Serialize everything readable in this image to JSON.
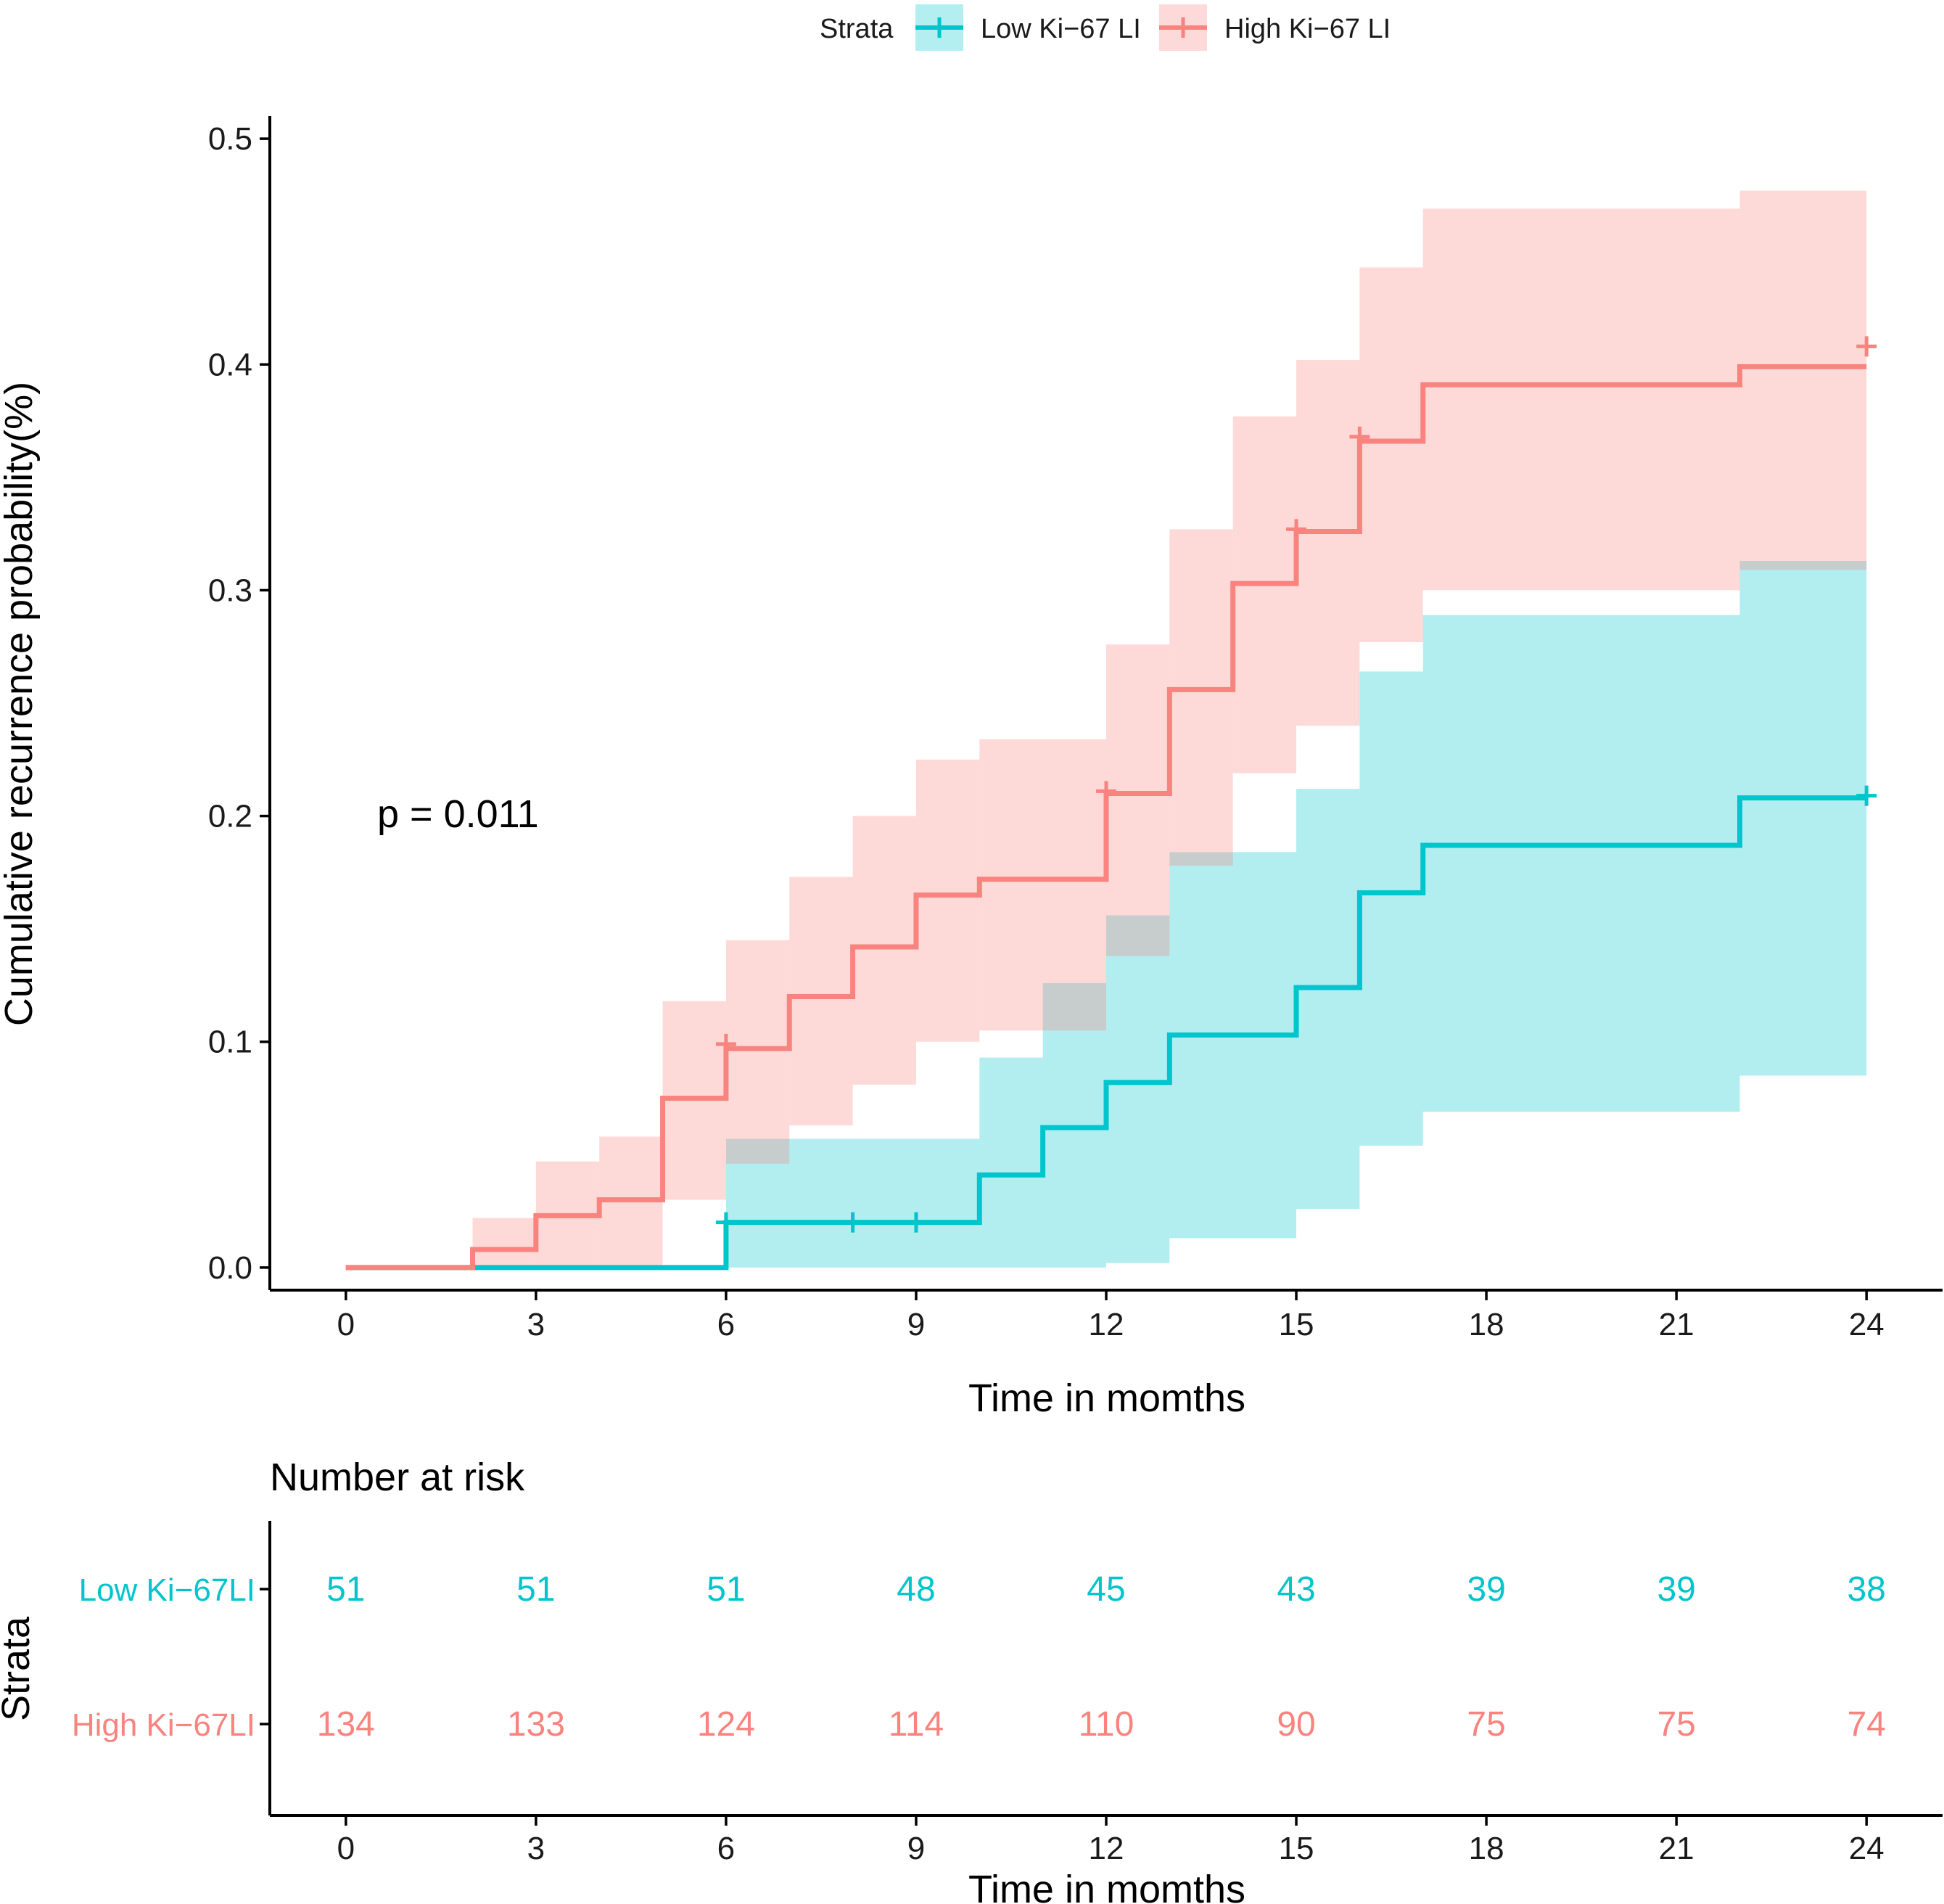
{
  "legend": {
    "title": "Strata",
    "items": [
      {
        "label": "Low Ki−67 LI",
        "color": "#00C5CC",
        "fill": "#B3EEF0"
      },
      {
        "label": "High Ki−67 LI",
        "color": "#F8837F",
        "fill": "#FDD9D9"
      }
    ]
  },
  "annotation": {
    "pvalue": "p = 0.011"
  },
  "risk_table": {
    "title": "Number at risk",
    "ylabel": "Strata",
    "xlabel": "Time in momths",
    "times": [
      0,
      3,
      6,
      9,
      12,
      15,
      18,
      21,
      24
    ],
    "rows": [
      {
        "label": "Low Ki−67LI",
        "color": "#00C5CC",
        "values": [
          51,
          51,
          51,
          48,
          45,
          43,
          39,
          39,
          38
        ]
      },
      {
        "label": "High Ki−67LI",
        "color": "#F8837F",
        "values": [
          134,
          133,
          124,
          114,
          110,
          90,
          75,
          75,
          74
        ]
      }
    ]
  },
  "chart_data": {
    "type": "line",
    "subtype": "step",
    "title": "",
    "xlabel": "Time in momths",
    "ylabel": "Cumulative recurrence probability(%)",
    "xlim": [
      -1.2,
      25.2
    ],
    "ylim": [
      -0.01,
      0.51
    ],
    "xticks": [
      0,
      3,
      6,
      9,
      12,
      15,
      18,
      21,
      24
    ],
    "yticks": [
      0.0,
      0.1,
      0.2,
      0.3,
      0.4,
      0.5
    ],
    "ytick_labels": [
      "0.0",
      "0.1",
      "0.2",
      "0.3",
      "0.4",
      "0.5"
    ],
    "series": [
      {
        "name": "Low Ki−67 LI",
        "color": "#00C5CC",
        "fill": "#B3EEF0",
        "step_x": [
          0,
          6,
          10,
          11,
          12,
          13,
          15,
          16,
          17,
          22,
          24
        ],
        "step_y": [
          0.0,
          0.02,
          0.041,
          0.062,
          0.082,
          0.103,
          0.124,
          0.166,
          0.187,
          0.208,
          0.208
        ],
        "ci_lower": [
          0.0,
          0.0,
          0.0,
          0.0,
          0.002,
          0.013,
          0.026,
          0.054,
          0.069,
          0.085,
          0.085
        ],
        "ci_upper": [
          0.0,
          0.057,
          0.093,
          0.126,
          0.156,
          0.184,
          0.212,
          0.264,
          0.289,
          0.313,
          0.313
        ],
        "censor_x": [
          6,
          8,
          9,
          24
        ],
        "censor_y": [
          0.02,
          0.02,
          0.02,
          0.209
        ]
      },
      {
        "name": "High Ki−67 LI",
        "color": "#F8837F",
        "fill": "#FDD9D9",
        "step_x": [
          0,
          2,
          3,
          4,
          5,
          6,
          7,
          8,
          9,
          10,
          12,
          13,
          14,
          15,
          16,
          17,
          22,
          24
        ],
        "step_y": [
          0.0,
          0.008,
          0.023,
          0.03,
          0.075,
          0.097,
          0.12,
          0.142,
          0.165,
          0.172,
          0.21,
          0.256,
          0.303,
          0.326,
          0.366,
          0.391,
          0.399,
          0.399
        ],
        "ci_lower": [
          0.0,
          0.0,
          0.0,
          0.0,
          0.03,
          0.046,
          0.063,
          0.081,
          0.1,
          0.105,
          0.138,
          0.178,
          0.219,
          0.24,
          0.277,
          0.3,
          0.309,
          0.309
        ],
        "ci_upper": [
          0.0,
          0.022,
          0.047,
          0.058,
          0.118,
          0.145,
          0.173,
          0.2,
          0.225,
          0.234,
          0.276,
          0.327,
          0.377,
          0.402,
          0.443,
          0.469,
          0.477,
          0.477
        ],
        "censor_x": [
          6,
          12,
          15,
          16,
          24
        ],
        "censor_y": [
          0.099,
          0.211,
          0.327,
          0.368,
          0.408
        ]
      }
    ]
  }
}
